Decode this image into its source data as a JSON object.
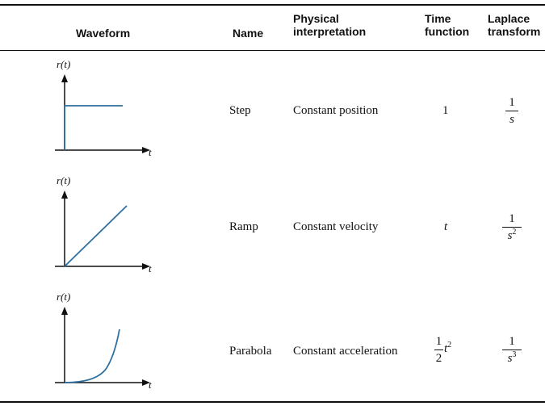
{
  "headers": {
    "waveform": "Waveform",
    "name": "Name",
    "physical_line1": "Physical",
    "physical_line2": "interpretation",
    "time_line1": "Time",
    "time_line2": "function",
    "laplace_line1": "Laplace",
    "laplace_line2": "transform"
  },
  "axes": {
    "y_label": "r(t)",
    "x_label": "t"
  },
  "rows": [
    {
      "name": "Step",
      "interpretation": "Constant position",
      "time_function": "1",
      "laplace_num": "1",
      "laplace_den": "s",
      "laplace_den_exp": "",
      "waveform": "step"
    },
    {
      "name": "Ramp",
      "interpretation": "Constant velocity",
      "time_function": "t",
      "laplace_num": "1",
      "laplace_den": "s",
      "laplace_den_exp": "2",
      "waveform": "ramp"
    },
    {
      "name": "Parabola",
      "interpretation": "Constant acceleration",
      "time_frac_num": "1",
      "time_frac_den": "2",
      "time_var": "t",
      "time_exp": "2",
      "laplace_num": "1",
      "laplace_den": "s",
      "laplace_den_exp": "3",
      "waveform": "parabola"
    }
  ],
  "colors": {
    "curve": "#2f6f9f",
    "axis": "#111111",
    "rule": "#111111"
  }
}
